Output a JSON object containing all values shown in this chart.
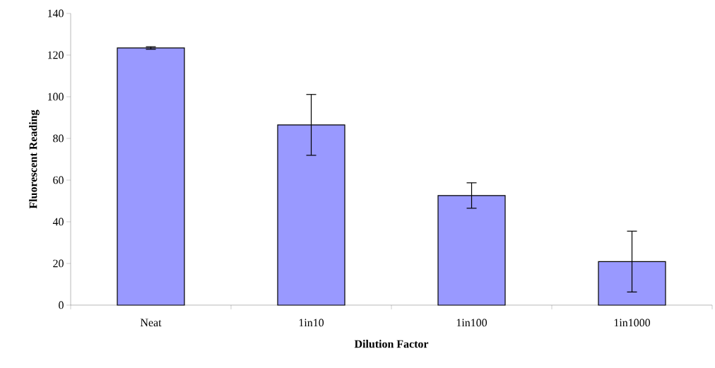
{
  "chart_data": {
    "type": "bar",
    "xlabel": "Dilution Factor",
    "ylabel": "Fluorescent Reading",
    "categories": [
      "Neat",
      "1in10",
      "1in100",
      "1in1000"
    ],
    "values": [
      123.4,
      86.5,
      52.6,
      20.9
    ],
    "errors": [
      0.6,
      14.6,
      6.1,
      14.6
    ],
    "color": "#9999ff",
    "ylim": [
      0,
      140
    ],
    "yticks": [
      0,
      20,
      40,
      60,
      80,
      100,
      120,
      140
    ],
    "grid": false
  }
}
